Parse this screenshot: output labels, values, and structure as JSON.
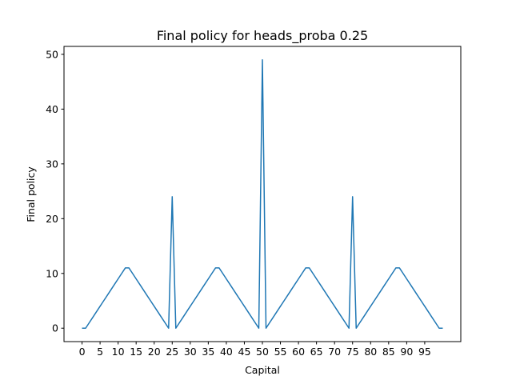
{
  "chart_data": {
    "type": "line",
    "title": "Final policy for heads_proba 0.25",
    "xlabel": "Capital",
    "ylabel": "Final policy",
    "x": [
      0,
      1,
      2,
      3,
      4,
      5,
      6,
      7,
      8,
      9,
      10,
      11,
      12,
      13,
      14,
      15,
      16,
      17,
      18,
      19,
      20,
      21,
      22,
      23,
      24,
      25,
      26,
      27,
      28,
      29,
      30,
      31,
      32,
      33,
      34,
      35,
      36,
      37,
      38,
      39,
      40,
      41,
      42,
      43,
      44,
      45,
      46,
      47,
      48,
      49,
      50,
      51,
      52,
      53,
      54,
      55,
      56,
      57,
      58,
      59,
      60,
      61,
      62,
      63,
      64,
      65,
      66,
      67,
      68,
      69,
      70,
      71,
      72,
      73,
      74,
      75,
      76,
      77,
      78,
      79,
      80,
      81,
      82,
      83,
      84,
      85,
      86,
      87,
      88,
      89,
      90,
      91,
      92,
      93,
      94,
      95,
      96,
      97,
      98,
      99,
      100
    ],
    "series": [
      {
        "color": "#1f77b4",
        "values": [
          0,
          0,
          1,
          2,
          3,
          4,
          5,
          6,
          7,
          8,
          9,
          10,
          11,
          11,
          10,
          9,
          8,
          7,
          6,
          5,
          4,
          3,
          2,
          1,
          0,
          24,
          0,
          1,
          2,
          3,
          4,
          5,
          6,
          7,
          8,
          9,
          10,
          11,
          11,
          10,
          9,
          8,
          7,
          6,
          5,
          4,
          3,
          2,
          1,
          0,
          49,
          0,
          1,
          2,
          3,
          4,
          5,
          6,
          7,
          8,
          9,
          10,
          11,
          11,
          10,
          9,
          8,
          7,
          6,
          5,
          4,
          3,
          2,
          1,
          0,
          24,
          0,
          1,
          2,
          3,
          4,
          5,
          6,
          7,
          8,
          9,
          10,
          11,
          11,
          10,
          9,
          8,
          7,
          6,
          5,
          4,
          3,
          2,
          1,
          0,
          0
        ]
      }
    ],
    "xlim": [
      -5,
      105
    ],
    "xticks": [
      0,
      5,
      10,
      15,
      20,
      25,
      30,
      35,
      40,
      45,
      50,
      55,
      60,
      65,
      70,
      75,
      80,
      85,
      90,
      95
    ],
    "ylim": [
      -2.45,
      51.45
    ],
    "yticks": [
      0,
      10,
      20,
      30,
      40,
      50
    ],
    "grid": false
  }
}
